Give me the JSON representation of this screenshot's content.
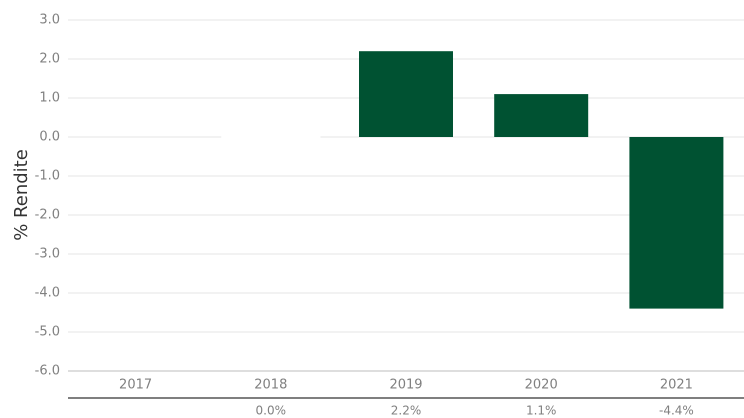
{
  "chart_data": {
    "type": "bar",
    "title": "",
    "xlabel": "",
    "ylabel": "% Rendite",
    "categories": [
      "2017",
      "2018",
      "2019",
      "2020",
      "2021"
    ],
    "values": [
      null,
      0.0,
      2.2,
      1.1,
      -4.4
    ],
    "value_labels": [
      "",
      "0.0%",
      "2.2%",
      "1.1%",
      "-4.4%"
    ],
    "ylim": [
      -6.0,
      3.0
    ],
    "yticks": [
      "3.0",
      "2.0",
      "1.0",
      "0.0",
      "-1.0",
      "-2.0",
      "-3.0",
      "-4.0",
      "-5.0",
      "-6.0"
    ],
    "grid": true,
    "legend": "none"
  },
  "colors": {
    "bar": "#005232",
    "grid": "#e6e6e6",
    "axis": "#bdbdbd",
    "table_line": "#333333"
  }
}
